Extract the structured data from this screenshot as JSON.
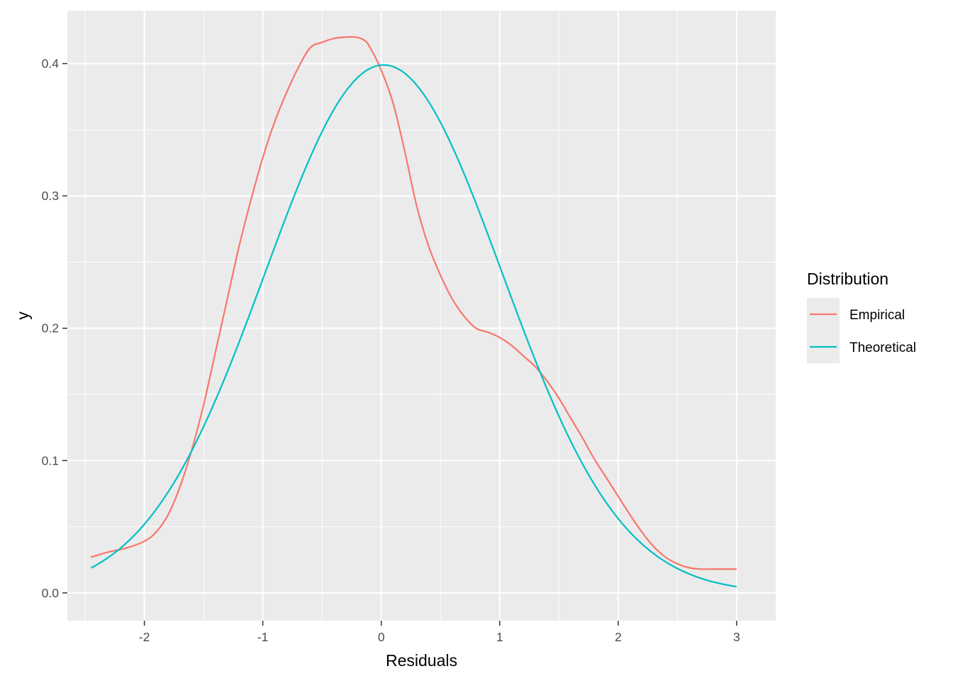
{
  "chart_data": {
    "type": "line",
    "xlabel": "Residuals",
    "ylabel": "y",
    "xlim": [
      -2.65,
      3.33
    ],
    "ylim": [
      -0.021,
      0.44
    ],
    "x_ticks": [
      -2,
      -1,
      0,
      1,
      2,
      3
    ],
    "x_tick_labels": [
      "-2",
      "-1",
      "0",
      "1",
      "2",
      "3"
    ],
    "y_ticks": [
      0.0,
      0.1,
      0.2,
      0.3,
      0.4
    ],
    "y_tick_labels": [
      "0.0",
      "0.1",
      "0.2",
      "0.3",
      "0.4"
    ],
    "grid": true,
    "legend": {
      "title": "Distribution",
      "position": "right"
    },
    "series": [
      {
        "name": "Empirical",
        "color": "#F8766D",
        "x": [
          -2.45,
          -2.3,
          -2.15,
          -2.0,
          -1.9,
          -1.8,
          -1.7,
          -1.6,
          -1.5,
          -1.4,
          -1.3,
          -1.2,
          -1.1,
          -1.0,
          -0.9,
          -0.8,
          -0.7,
          -0.6,
          -0.5,
          -0.4,
          -0.3,
          -0.22,
          -0.15,
          -0.1,
          0.0,
          0.1,
          0.2,
          0.3,
          0.4,
          0.5,
          0.6,
          0.7,
          0.8,
          0.9,
          1.0,
          1.1,
          1.2,
          1.3,
          1.4,
          1.5,
          1.6,
          1.7,
          1.8,
          1.9,
          2.0,
          2.1,
          2.2,
          2.3,
          2.4,
          2.5,
          2.6,
          2.7,
          2.8,
          2.9,
          3.0
        ],
        "y": [
          0.027,
          0.031,
          0.034,
          0.039,
          0.046,
          0.059,
          0.08,
          0.108,
          0.142,
          0.182,
          0.222,
          0.262,
          0.297,
          0.329,
          0.356,
          0.378,
          0.397,
          0.412,
          0.416,
          0.419,
          0.42,
          0.42,
          0.418,
          0.413,
          0.395,
          0.37,
          0.333,
          0.292,
          0.262,
          0.24,
          0.222,
          0.209,
          0.2,
          0.197,
          0.193,
          0.187,
          0.179,
          0.171,
          0.16,
          0.147,
          0.132,
          0.117,
          0.101,
          0.087,
          0.073,
          0.059,
          0.046,
          0.035,
          0.027,
          0.022,
          0.019,
          0.018,
          0.018,
          0.018,
          0.018
        ]
      },
      {
        "name": "Theoretical",
        "color": "#00BFC4",
        "mean": 0.02,
        "sd": 1.0,
        "x_range": [
          -2.45,
          3.0
        ]
      }
    ]
  }
}
